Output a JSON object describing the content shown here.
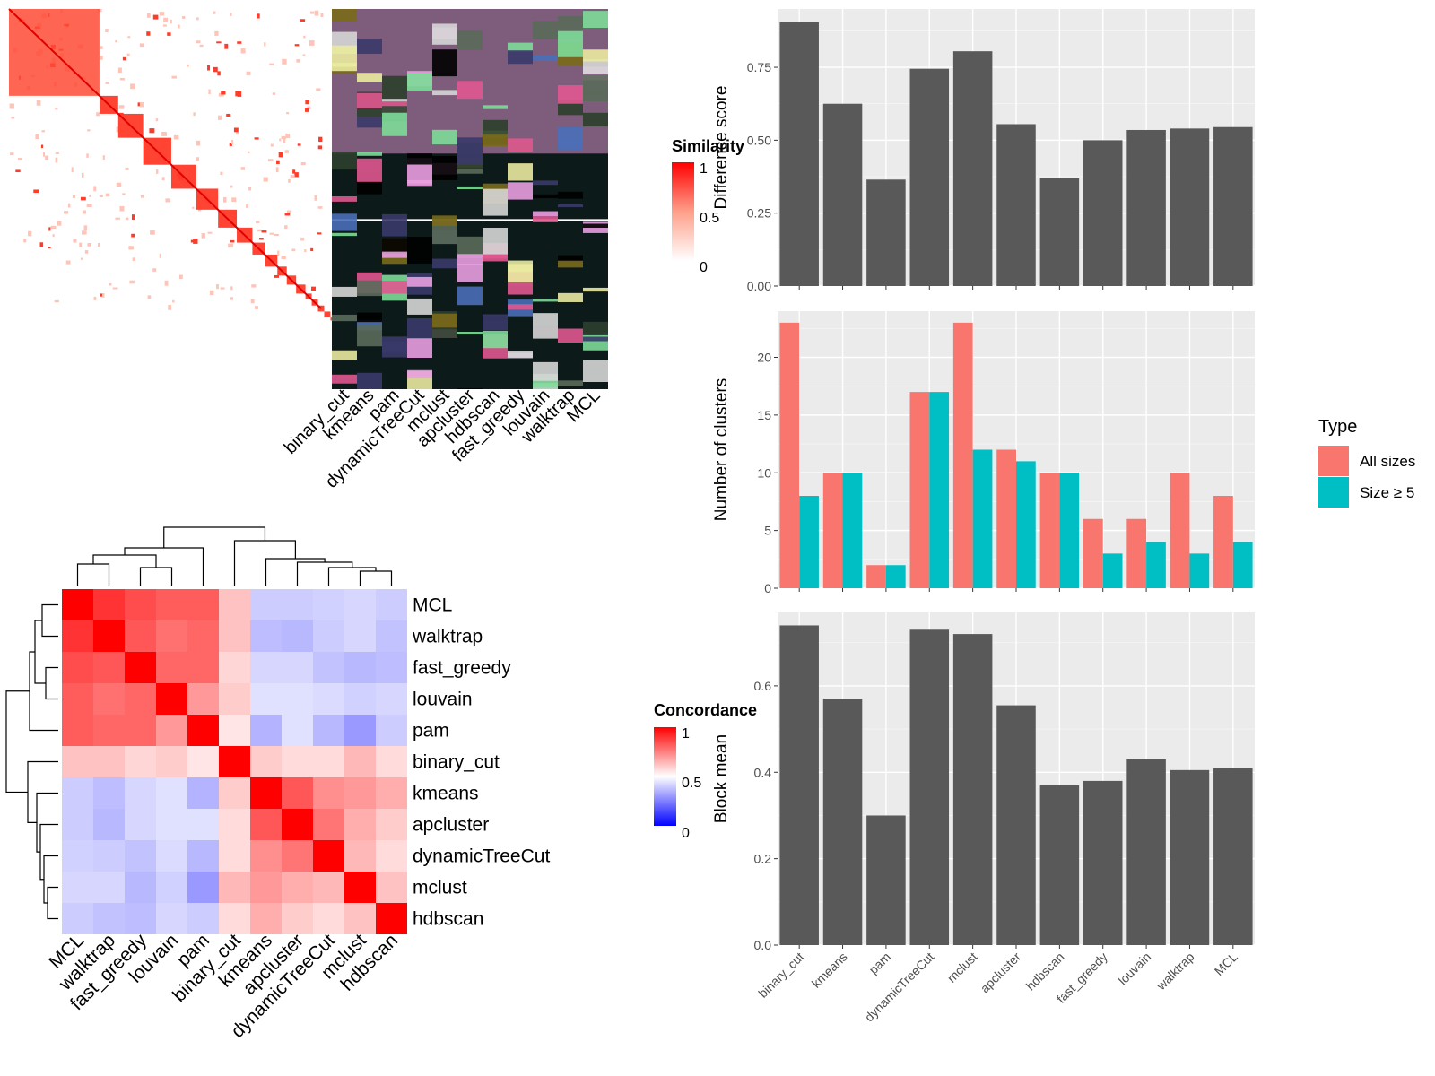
{
  "methods": [
    "binary_cut",
    "kmeans",
    "pam",
    "dynamicTreeCut",
    "mclust",
    "apcluster",
    "hdbscan",
    "fast_greedy",
    "louvain",
    "walktrap",
    "MCL"
  ],
  "similarity_panel": {
    "legend": {
      "title": "Similarity",
      "ticks": [
        "1",
        "0.5",
        "0"
      ]
    },
    "column_labels": [
      "binary_cut",
      "kmeans",
      "pam",
      "dynamicTreeCut",
      "mclust",
      "apcluster",
      "hdbscan",
      "fast_greedy",
      "louvain",
      "walktrap",
      "MCL"
    ],
    "block_fractions": [
      0.29,
      0.06,
      0.08,
      0.09,
      0.08,
      0.07,
      0.06,
      0.05,
      0.04,
      0.04,
      0.03,
      0.03,
      0.03,
      0.02,
      0.02,
      0.02,
      0.02,
      0.01,
      0.01,
      0.01
    ]
  },
  "concordance_panel": {
    "legend": {
      "title": "Concordance",
      "ticks": [
        "1",
        "0.5",
        "0"
      ]
    },
    "order": [
      "MCL",
      "walktrap",
      "fast_greedy",
      "louvain",
      "pam",
      "binary_cut",
      "kmeans",
      "apcluster",
      "dynamicTreeCut",
      "mclust",
      "hdbscan"
    ],
    "matrix": [
      [
        1.0,
        0.9,
        0.85,
        0.82,
        0.82,
        0.62,
        0.4,
        0.4,
        0.41,
        0.42,
        0.4
      ],
      [
        0.9,
        1.0,
        0.83,
        0.78,
        0.8,
        0.62,
        0.37,
        0.36,
        0.4,
        0.42,
        0.38
      ],
      [
        0.85,
        0.83,
        1.0,
        0.8,
        0.8,
        0.58,
        0.42,
        0.42,
        0.38,
        0.36,
        0.37
      ],
      [
        0.82,
        0.78,
        0.8,
        1.0,
        0.7,
        0.6,
        0.44,
        0.44,
        0.43,
        0.41,
        0.42
      ],
      [
        0.82,
        0.8,
        0.8,
        0.7,
        1.0,
        0.55,
        0.35,
        0.44,
        0.36,
        0.3,
        0.4
      ],
      [
        0.62,
        0.62,
        0.58,
        0.6,
        0.55,
        1.0,
        0.6,
        0.57,
        0.57,
        0.64,
        0.57
      ],
      [
        0.4,
        0.37,
        0.42,
        0.44,
        0.35,
        0.6,
        1.0,
        0.83,
        0.72,
        0.7,
        0.66
      ],
      [
        0.4,
        0.36,
        0.42,
        0.44,
        0.44,
        0.57,
        0.83,
        1.0,
        0.77,
        0.66,
        0.6
      ],
      [
        0.41,
        0.4,
        0.38,
        0.43,
        0.36,
        0.57,
        0.72,
        0.77,
        1.0,
        0.64,
        0.57
      ],
      [
        0.42,
        0.42,
        0.36,
        0.41,
        0.3,
        0.64,
        0.7,
        0.66,
        0.64,
        1.0,
        0.62
      ],
      [
        0.4,
        0.38,
        0.37,
        0.42,
        0.4,
        0.57,
        0.66,
        0.6,
        0.57,
        0.62,
        1.0
      ]
    ]
  },
  "chart_data": [
    {
      "type": "bar",
      "categories": [
        "binary_cut",
        "kmeans",
        "pam",
        "dynamicTreeCut",
        "mclust",
        "apcluster",
        "hdbscan",
        "fast_greedy",
        "louvain",
        "walktrap",
        "MCL"
      ],
      "values": [
        0.905,
        0.625,
        0.365,
        0.745,
        0.805,
        0.555,
        0.37,
        0.5,
        0.535,
        0.54,
        0.545
      ],
      "ylabel": "Difference score",
      "ylim": [
        0,
        0.95
      ],
      "yticks": [
        0,
        0.25,
        0.5,
        0.75
      ],
      "ytick_labels": [
        "0.00",
        "0.25",
        "0.50",
        "0.75"
      ],
      "bar_color": "#595959",
      "grid": true
    },
    {
      "type": "bar",
      "categories": [
        "binary_cut",
        "kmeans",
        "pam",
        "dynamicTreeCut",
        "mclust",
        "apcluster",
        "hdbscan",
        "fast_greedy",
        "louvain",
        "walktrap",
        "MCL"
      ],
      "series": [
        {
          "name": "All sizes",
          "color": "#F8766D",
          "values": [
            23,
            10,
            2,
            17,
            23,
            12,
            10,
            6,
            6,
            10,
            8
          ]
        },
        {
          "name": "Size ≥ 5",
          "color": "#00BFC4",
          "values": [
            8,
            10,
            2,
            17,
            12,
            11,
            10,
            3,
            4,
            3,
            4
          ]
        }
      ],
      "ylabel": "Number of clusters",
      "ylim": [
        0,
        24
      ],
      "yticks": [
        0,
        5,
        10,
        15,
        20
      ],
      "ytick_labels": [
        "0",
        "5",
        "10",
        "15",
        "20"
      ],
      "legend": {
        "title": "Type",
        "position": "right"
      },
      "grid": true
    },
    {
      "type": "bar",
      "categories": [
        "binary_cut",
        "kmeans",
        "pam",
        "dynamicTreeCut",
        "mclust",
        "apcluster",
        "hdbscan",
        "fast_greedy",
        "louvain",
        "walktrap",
        "MCL"
      ],
      "values": [
        0.74,
        0.57,
        0.3,
        0.73,
        0.72,
        0.555,
        0.37,
        0.38,
        0.43,
        0.405,
        0.41
      ],
      "ylabel": "Block mean",
      "ylim": [
        0,
        0.77
      ],
      "yticks": [
        0,
        0.2,
        0.4,
        0.6
      ],
      "ytick_labels": [
        "0.0",
        "0.2",
        "0.4",
        "0.6"
      ],
      "bar_color": "#595959",
      "grid": true
    }
  ]
}
